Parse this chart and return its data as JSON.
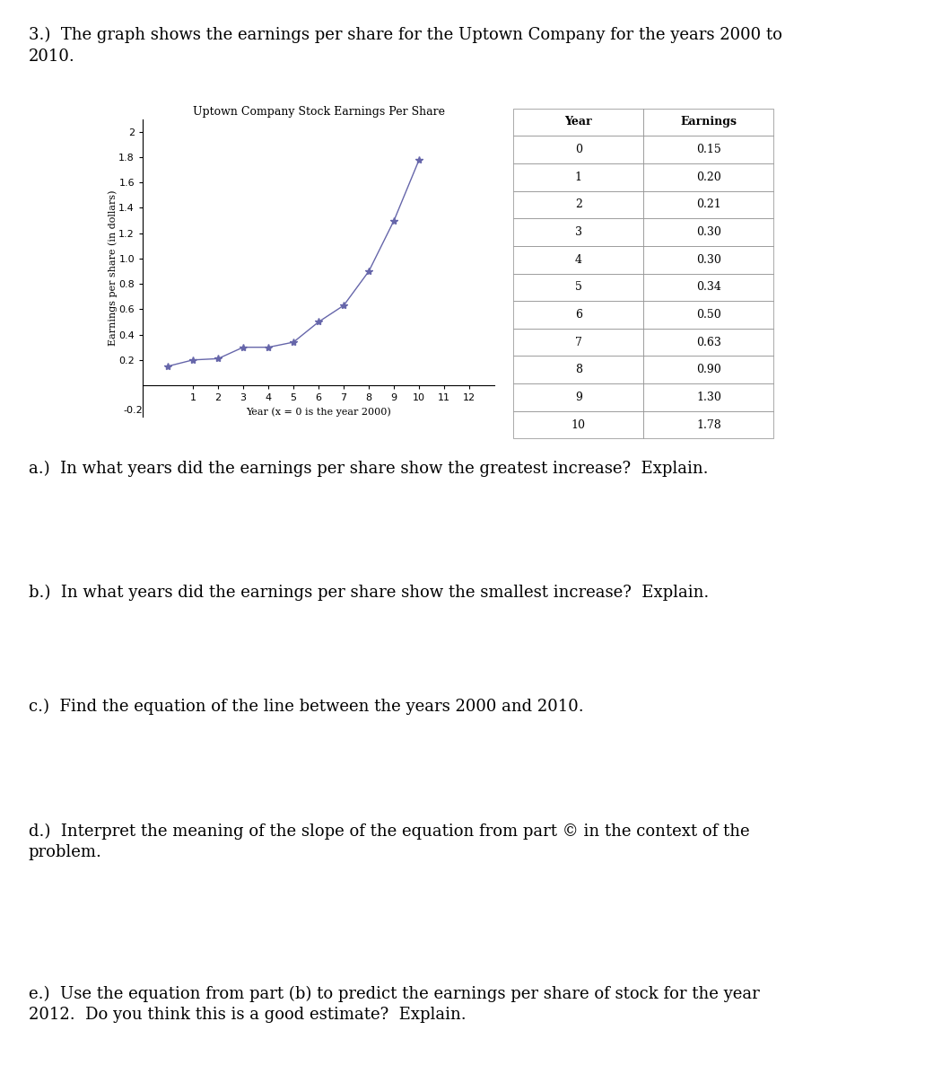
{
  "intro_text": "3.)  The graph shows the earnings per share for the Uptown Company for the years 2000 to\n2010.",
  "chart_title": "Uptown Company Stock Earnings Per Share",
  "xlabel": "Year (x = 0 is the year 2000)",
  "ylabel": "Earnings per share (in dollars)",
  "years": [
    0,
    1,
    2,
    3,
    4,
    5,
    6,
    7,
    8,
    9,
    10
  ],
  "earnings": [
    0.15,
    0.2,
    0.21,
    0.3,
    0.3,
    0.34,
    0.5,
    0.63,
    0.9,
    1.3,
    1.78
  ],
  "xlim": [
    -1,
    13
  ],
  "ylim": [
    -0.25,
    2.1
  ],
  "xticks": [
    1,
    2,
    3,
    4,
    5,
    6,
    7,
    8,
    9,
    10,
    11,
    12
  ],
  "ytick_vals": [
    0.2,
    0.4,
    0.6,
    0.8,
    1.0,
    1.2,
    1.4,
    1.6,
    1.8
  ],
  "ytick_top": 2.0,
  "line_color": "#6666aa",
  "marker": "*",
  "markersize": 6,
  "table_years": [
    "0",
    "1",
    "2",
    "3",
    "4",
    "5",
    "6",
    "7",
    "8",
    "9",
    "10"
  ],
  "table_earnings": [
    "0.15",
    "0.20",
    "0.21",
    "0.30",
    "0.30",
    "0.34",
    "0.50",
    "0.63",
    "0.90",
    "1.30",
    "1.78"
  ],
  "questions": [
    "a.)  In what years did the earnings per share show the greatest increase?  Explain.",
    "b.)  In what years did the earnings per share show the smallest increase?  Explain.",
    "c.)  Find the equation of the line between the years 2000 and 2010.",
    "d.)  Interpret the meaning of the slope of the equation from part © in the context of the\nproblem.",
    "e.)  Use the equation from part (b) to predict the earnings per share of stock for the year\n2012.  Do you think this is a good estimate?  Explain."
  ],
  "background_color": "#ffffff",
  "text_color": "#000000",
  "font_size_body": 13,
  "font_size_chart": 8,
  "font_size_title": 9
}
